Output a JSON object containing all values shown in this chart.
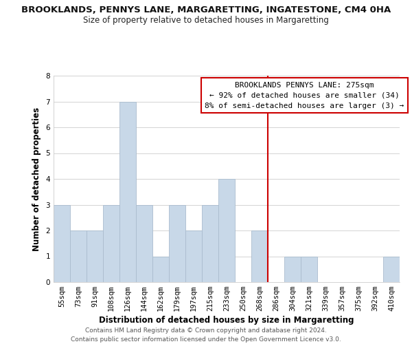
{
  "title": "BROOKLANDS, PENNYS LANE, MARGARETTING, INGATESTONE, CM4 0HA",
  "subtitle": "Size of property relative to detached houses in Margaretting",
  "xlabel": "Distribution of detached houses by size in Margaretting",
  "ylabel": "Number of detached properties",
  "footer_line1": "Contains HM Land Registry data © Crown copyright and database right 2024.",
  "footer_line2": "Contains public sector information licensed under the Open Government Licence v3.0.",
  "categories": [
    "55sqm",
    "73sqm",
    "91sqm",
    "108sqm",
    "126sqm",
    "144sqm",
    "162sqm",
    "179sqm",
    "197sqm",
    "215sqm",
    "233sqm",
    "250sqm",
    "268sqm",
    "286sqm",
    "304sqm",
    "321sqm",
    "339sqm",
    "357sqm",
    "375sqm",
    "392sqm",
    "410sqm"
  ],
  "values": [
    3,
    2,
    2,
    3,
    7,
    3,
    1,
    3,
    2,
    3,
    4,
    0,
    2,
    0,
    1,
    1,
    0,
    0,
    0,
    0,
    1
  ],
  "bar_color": "#c8d8e8",
  "bar_edge_color": "#aabcce",
  "ylim": [
    0,
    8
  ],
  "yticks": [
    0,
    1,
    2,
    3,
    4,
    5,
    6,
    7,
    8
  ],
  "ref_line_x": 12.5,
  "ref_line_color": "#cc0000",
  "annotation_title": "BROOKLANDS PENNYS LANE: 275sqm",
  "annotation_line1": "← 92% of detached houses are smaller (34)",
  "annotation_line2": "8% of semi-detached houses are larger (3) →",
  "background_color": "#ffffff",
  "grid_color": "#cccccc",
  "title_fontsize": 9.5,
  "subtitle_fontsize": 8.5,
  "axis_label_fontsize": 8.5,
  "tick_fontsize": 7.5,
  "annotation_fontsize": 8,
  "footer_fontsize": 6.5
}
